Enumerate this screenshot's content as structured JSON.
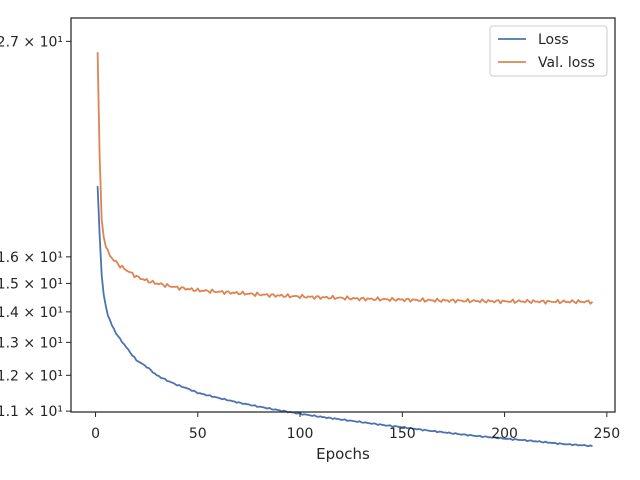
{
  "chart_data": {
    "type": "line",
    "xlabel": "Epochs",
    "ylabel": "",
    "xlim": [
      -12,
      254
    ],
    "ylim_log10": [
      1.0405,
      1.456
    ],
    "yscale": "log",
    "x_ticks": [
      0,
      50,
      100,
      150,
      200,
      250
    ],
    "y_ticks": [
      {
        "value": 11,
        "label": "1.1 × 10¹"
      },
      {
        "value": 12,
        "label": "1.2 × 10¹"
      },
      {
        "value": 13,
        "label": "1.3 × 10¹"
      },
      {
        "value": 14,
        "label": "1.4 × 10¹"
      },
      {
        "value": 15,
        "label": "1.5 × 10¹"
      },
      {
        "value": 16,
        "label": "1.6 × 10¹"
      },
      {
        "value": 27,
        "label": "2.7 × 10¹"
      }
    ],
    "grid": false,
    "legend_position": "top-right",
    "series": [
      {
        "name": "Loss",
        "color": "#4c72b0",
        "x": [
          1,
          2,
          3,
          4,
          5,
          6,
          8,
          10,
          12,
          15,
          18,
          20,
          25,
          30,
          35,
          40,
          45,
          50,
          60,
          70,
          80,
          90,
          100,
          110,
          120,
          130,
          140,
          150,
          160,
          170,
          180,
          190,
          200,
          210,
          220,
          230,
          240,
          243
        ],
        "y": [
          19.0,
          16.9,
          15.3,
          14.6,
          14.2,
          13.9,
          13.55,
          13.3,
          13.1,
          12.85,
          12.6,
          12.45,
          12.25,
          12.0,
          11.85,
          11.72,
          11.62,
          11.5,
          11.36,
          11.23,
          11.12,
          11.02,
          10.93,
          10.85,
          10.78,
          10.71,
          10.64,
          10.58,
          10.51,
          10.45,
          10.39,
          10.34,
          10.29,
          10.25,
          10.2,
          10.15,
          10.12,
          10.1
        ]
      },
      {
        "name": "Val. loss",
        "color": "#dd8452",
        "x": [
          1,
          2,
          3,
          4,
          5,
          6,
          8,
          10,
          12,
          15,
          18,
          20,
          25,
          30,
          35,
          40,
          45,
          50,
          60,
          70,
          80,
          90,
          100,
          110,
          120,
          130,
          140,
          150,
          160,
          170,
          180,
          190,
          200,
          210,
          220,
          230,
          240,
          243
        ],
        "y": [
          26.3,
          20.5,
          17.5,
          16.8,
          16.4,
          16.2,
          15.95,
          15.8,
          15.65,
          15.5,
          15.35,
          15.25,
          15.1,
          15.0,
          14.92,
          14.85,
          14.8,
          14.75,
          14.7,
          14.65,
          14.6,
          14.56,
          14.53,
          14.5,
          14.48,
          14.45,
          14.43,
          14.42,
          14.4,
          14.39,
          14.38,
          14.37,
          14.36,
          14.36,
          14.35,
          14.35,
          14.35,
          14.35
        ]
      }
    ]
  }
}
